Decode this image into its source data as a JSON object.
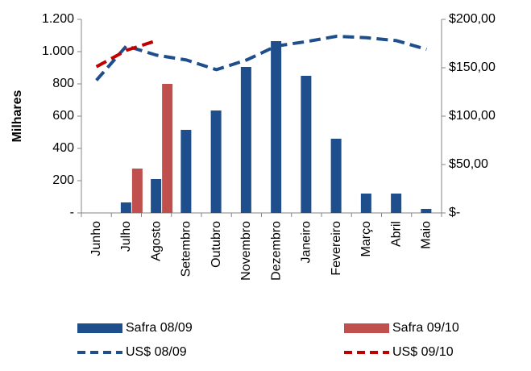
{
  "chart_data": {
    "type": "bar-line",
    "y_label": "Milhares",
    "categories": [
      "Junho",
      "Julho",
      "Agosto",
      "Setembro",
      "Outubro",
      "Novembro",
      "Dezembro",
      "Janeiro",
      "Fevereiro",
      "Março",
      "Abril",
      "Maio"
    ],
    "series": [
      {
        "name": "Safra 08/09",
        "kind": "bar",
        "color": "#1f4e8c",
        "values": [
          0,
          65,
          210,
          515,
          635,
          905,
          1065,
          850,
          460,
          120,
          120,
          25
        ]
      },
      {
        "name": "Safra 09/10",
        "kind": "bar",
        "color": "#c0504d",
        "values": [
          null,
          275,
          800,
          null,
          null,
          null,
          null,
          null,
          null,
          null,
          null,
          null
        ]
      },
      {
        "name": "US$ 08/09",
        "kind": "line",
        "axis": "y2",
        "color": "#1f4e8c",
        "values": [
          137,
          172.5,
          163,
          158,
          148,
          158,
          172.5,
          177,
          182.5,
          181,
          178,
          169
        ]
      },
      {
        "name": "US$ 09/10",
        "kind": "line",
        "axis": "y2",
        "color": "#c00000",
        "values": [
          151,
          168,
          178,
          null,
          null,
          null,
          null,
          null,
          null,
          null,
          null,
          null
        ]
      }
    ],
    "ylim": [
      0,
      1200
    ],
    "yticks": [
      {
        "value": 0,
        "label": "-"
      },
      200,
      400,
      600,
      800,
      {
        "value": 1000,
        "label": "1.000"
      },
      {
        "value": 1200,
        "label": "1.200"
      }
    ],
    "y2lim": [
      0,
      200
    ],
    "y2ticks": [
      {
        "value": 0,
        "label": "$-"
      },
      {
        "value": 50,
        "label": "$50,00"
      },
      {
        "value": 100,
        "label": "$100,00"
      },
      {
        "value": 150,
        "label": "$150,00"
      },
      {
        "value": 200,
        "label": "$200,00"
      }
    ],
    "grid": false,
    "legend": "bottom"
  }
}
